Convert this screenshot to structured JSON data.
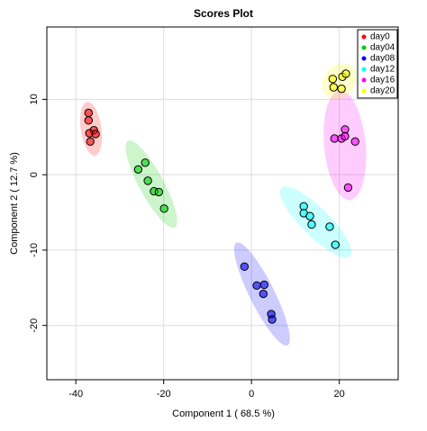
{
  "chart_data": {
    "type": "scatter",
    "title": "Scores Plot",
    "x_label": "Component 1 ( 68.5 %)",
    "y_label": "Component 2 ( 12.7 %)",
    "xlim": [
      -46.6,
      33.4
    ],
    "ylim": [
      -27.2,
      19.6
    ],
    "xticks": [
      -40,
      -20,
      0,
      20
    ],
    "yticks": [
      -20,
      -10,
      0,
      10
    ],
    "grid": true,
    "legend": "top-right",
    "series": [
      {
        "name": "day0",
        "color": "#ff0000",
        "x": [
          -37.1,
          -37.1,
          -35.9,
          -36.9,
          -35.5,
          -36.7
        ],
        "values": [
          8.2,
          7.2,
          5.9,
          5.5,
          5.4,
          4.4
        ]
      },
      {
        "name": "day04",
        "color": "#00cc00",
        "x": [
          -25.8,
          -24.2,
          -23.6,
          -22.2,
          -21.1,
          -19.9
        ],
        "values": [
          0.7,
          1.6,
          -0.8,
          -2.2,
          -2.3,
          -4.5
        ]
      },
      {
        "name": "day08",
        "color": "#0000ff",
        "x": [
          -1.6,
          1.2,
          2.9,
          2.7,
          4.5,
          4.7
        ],
        "values": [
          -12.2,
          -14.7,
          -14.6,
          -15.8,
          -18.5,
          -19.2
        ]
      },
      {
        "name": "day12",
        "color": "#00ffff",
        "x": [
          11.9,
          11.9,
          13.3,
          13.7,
          17.8,
          19.1
        ],
        "values": [
          -4.2,
          -5.1,
          -5.5,
          -6.6,
          -6.9,
          -9.3
        ]
      },
      {
        "name": "day16",
        "color": "#ff00ff",
        "x": [
          21.3,
          18.9,
          20.5,
          21.3,
          23.6,
          22.0
        ],
        "values": [
          6.0,
          4.8,
          4.8,
          5.1,
          4.4,
          -1.7
        ]
      },
      {
        "name": "day20",
        "color": "#ffff00",
        "x": [
          18.5,
          20.7,
          21.5,
          18.7,
          20.5
        ],
        "values": [
          12.7,
          13.0,
          13.4,
          11.6,
          11.4
        ]
      }
    ]
  }
}
